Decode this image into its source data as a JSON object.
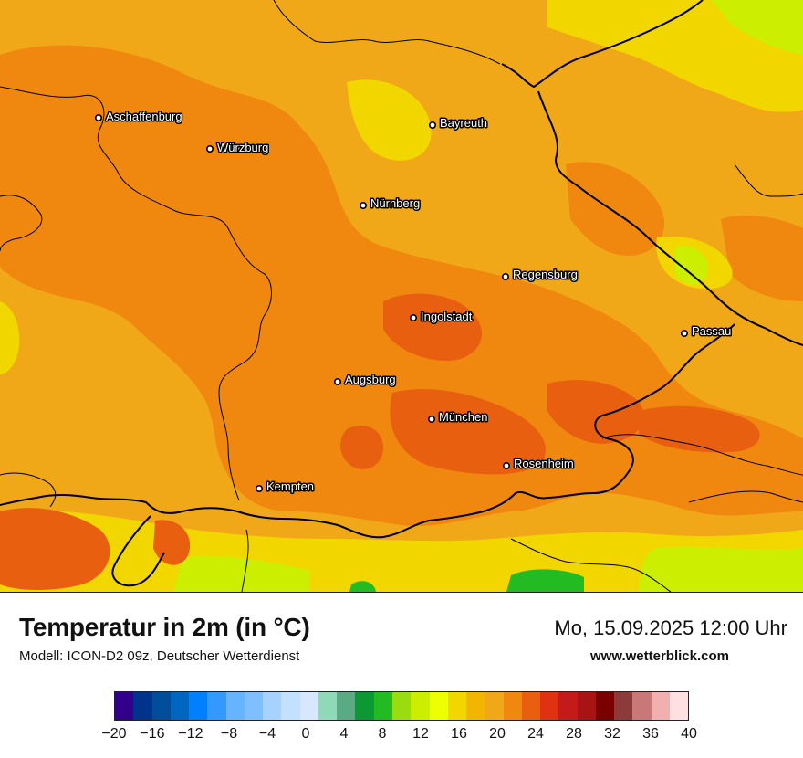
{
  "map": {
    "base_color": "#f0a818",
    "cities": [
      {
        "name": "Aschaffenburg"
      },
      {
        "name": "Würzburg"
      },
      {
        "name": "Bayreuth"
      },
      {
        "name": "Nürnberg"
      },
      {
        "name": "Regensburg"
      },
      {
        "name": "Ingolstadt"
      },
      {
        "name": "Passau"
      },
      {
        "name": "Augsburg"
      },
      {
        "name": "München"
      },
      {
        "name": "Rosenheim"
      },
      {
        "name": "Kempten"
      }
    ]
  },
  "header": {
    "title": "Temperatur in 2m (in °C)",
    "subtitle": "Modell: ICON-D2 09z, Deutscher Wetterdienst",
    "datetime": "Mo, 15.09.2025 12:00 Uhr",
    "website": "www.wetterblick.com"
  },
  "legend": {
    "unit": "°C",
    "min": -20,
    "max": 40,
    "colors": [
      "#33008c",
      "#00338c",
      "#004d99",
      "#0066bf",
      "#0080ff",
      "#3399ff",
      "#66b3ff",
      "#80bfff",
      "#a6d2ff",
      "#c3e0ff",
      "#d6e8ff",
      "#8fd9b8",
      "#5aaa84",
      "#0c9933",
      "#22bb22",
      "#99dd11",
      "#ccee00",
      "#eeff00",
      "#f2d600",
      "#f2b600",
      "#f0a818",
      "#f08810",
      "#e85f10",
      "#e03210",
      "#c41a1a",
      "#a81414",
      "#7a0000",
      "#8c3a3a",
      "#c87878",
      "#f0b0b0",
      "#ffe0e0"
    ],
    "ticks": [
      "−20",
      "−16",
      "−12",
      "−8",
      "−4",
      "0",
      "4",
      "8",
      "12",
      "16",
      "20",
      "24",
      "28",
      "32",
      "36",
      "40"
    ],
    "tick_values": [
      -20,
      -16,
      -12,
      -8,
      -4,
      0,
      4,
      8,
      12,
      16,
      20,
      24,
      28,
      32,
      36,
      40
    ]
  }
}
